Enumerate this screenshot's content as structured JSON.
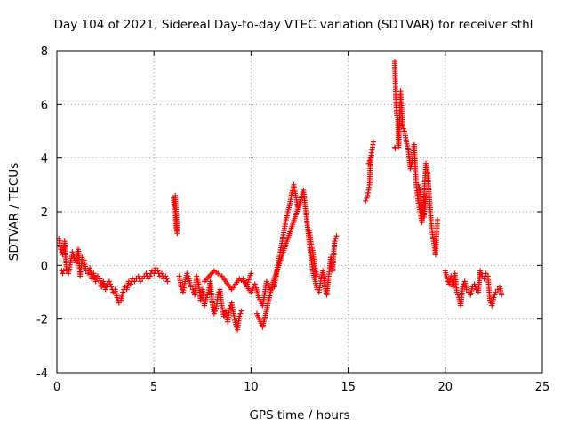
{
  "chart_data": {
    "type": "scatter",
    "title": "Day 104 of 2021, Sidereal Day-to-day VTEC variation (SDTVAR) for receiver sthl",
    "xlabel": "GPS time / hours",
    "ylabel": "SDTVAR / TECUs",
    "xlim": [
      0,
      25
    ],
    "ylim": [
      -4,
      8
    ],
    "xticks": [
      0,
      5,
      10,
      15,
      20,
      25
    ],
    "yticks": [
      -4,
      -2,
      0,
      2,
      4,
      6,
      8
    ],
    "grid": true,
    "marker": "plus",
    "series_color": "#ff0000",
    "series": [
      {
        "name": "sthl",
        "segments": [
          {
            "x": [
              0.1,
              0.2,
              0.3,
              0.4,
              0.5,
              0.6,
              0.7,
              0.8,
              0.9,
              1.0,
              1.1,
              1.2,
              1.3,
              1.4,
              1.5,
              1.6,
              1.7,
              1.8,
              1.9,
              2.0,
              2.1,
              2.2,
              2.3,
              2.4,
              2.5,
              2.6,
              2.7,
              2.8,
              2.9,
              3.0,
              3.1,
              3.2,
              3.3,
              3.4,
              3.5,
              3.6,
              3.7,
              3.8,
              3.9,
              4.0,
              4.1,
              4.2,
              4.3,
              4.4,
              4.5,
              4.6,
              4.7,
              4.8,
              4.9,
              5.0,
              5.1,
              5.2,
              5.3,
              5.4,
              5.5,
              5.6,
              5.7
            ],
            "y": [
              1.0,
              0.6,
              0.4,
              0.9,
              -0.2,
              -0.3,
              0.1,
              0.5,
              0.3,
              0.1,
              0.6,
              -0.4,
              0.3,
              0.2,
              -0.2,
              -0.3,
              -0.1,
              -0.5,
              -0.3,
              -0.6,
              -0.4,
              -0.5,
              -0.8,
              -0.6,
              -0.9,
              -0.7,
              -0.6,
              -0.8,
              -1.0,
              -0.9,
              -1.2,
              -1.4,
              -1.3,
              -1.0,
              -0.8,
              -0.9,
              -0.6,
              -0.7,
              -0.5,
              -0.6,
              -0.5,
              -0.4,
              -0.6,
              -0.5,
              -0.4,
              -0.3,
              -0.5,
              -0.4,
              -0.2,
              -0.3,
              -0.1,
              -0.2,
              -0.4,
              -0.3,
              -0.5,
              -0.4,
              -0.6
            ]
          },
          {
            "x": [
              0.25,
              0.3,
              0.35
            ],
            "y": [
              -0.2,
              -0.3,
              -0.2
            ]
          },
          {
            "x": [
              6.0,
              6.05,
              6.1,
              6.15,
              6.2,
              6.1
            ],
            "y": [
              2.5,
              2.2,
              2.0,
              1.4,
              1.2,
              2.6
            ]
          },
          {
            "x": [
              6.3,
              6.4,
              6.5,
              6.6,
              6.7,
              6.8,
              6.9,
              7.0,
              7.1,
              7.2,
              7.3,
              7.4,
              7.5,
              7.6,
              7.7,
              7.8,
              7.9,
              8.0,
              8.1,
              8.2,
              8.3,
              8.4,
              8.5,
              8.6,
              8.7,
              8.8,
              8.9,
              9.0,
              9.1,
              9.2,
              9.3,
              9.4,
              9.5
            ],
            "y": [
              -0.4,
              -0.8,
              -1.0,
              -0.6,
              -0.3,
              -0.5,
              -0.8,
              -0.9,
              -1.1,
              -0.4,
              -0.7,
              -1.3,
              -0.9,
              -1.5,
              -1.2,
              -1.0,
              -0.6,
              -1.4,
              -1.8,
              -1.6,
              -1.1,
              -0.9,
              -1.5,
              -1.9,
              -1.7,
              -2.1,
              -1.6,
              -1.4,
              -1.8,
              -2.2,
              -2.4,
              -1.9,
              -1.7
            ]
          },
          {
            "x": [
              7.6,
              8.1,
              8.5,
              9.0,
              9.4,
              9.8,
              10.0
            ],
            "y": [
              -0.6,
              -0.2,
              -0.4,
              -0.9,
              -0.5,
              -0.7,
              -0.3
            ]
          },
          {
            "x": [
              9.6,
              9.8,
              10.0,
              10.2,
              10.4,
              10.6,
              10.8,
              11.0,
              11.2,
              11.3,
              11.4,
              11.5,
              11.6,
              11.7,
              11.8,
              11.9,
              12.0,
              12.1,
              12.2,
              12.3,
              12.4
            ],
            "y": [
              -0.5,
              -0.8,
              -1.0,
              -0.7,
              -1.2,
              -1.5,
              -0.6,
              -0.9,
              -0.8,
              -0.4,
              0.1,
              0.5,
              0.9,
              1.3,
              1.7,
              2.0,
              2.3,
              2.7,
              3.0,
              2.6,
              2.2
            ]
          },
          {
            "x": [
              10.3,
              10.6,
              11.1,
              12.5,
              12.7,
              12.9,
              13.0,
              13.1,
              13.2,
              13.3,
              13.4,
              13.5,
              13.6,
              13.7,
              13.8,
              13.9,
              14.0,
              14.1,
              14.2,
              14.3,
              14.4
            ],
            "y": [
              -1.8,
              -2.3,
              -0.7,
              2.3,
              2.8,
              1.5,
              0.8,
              0.2,
              -0.3,
              -0.6,
              -0.9,
              -1.0,
              -0.5,
              -0.2,
              -0.8,
              -1.1,
              -0.4,
              0.3,
              -0.2,
              0.9,
              1.1
            ]
          },
          {
            "x": [
              13.0,
              13.1,
              13.2,
              13.3,
              13.4
            ],
            "y": [
              1.3,
              0.8,
              0.4,
              -0.1,
              -0.4
            ]
          },
          {
            "x": [
              15.9,
              16.0,
              16.05,
              16.1,
              16.15,
              16.2,
              16.25,
              16.3
            ],
            "y": [
              2.4,
              2.6,
              2.8,
              3.0,
              4.0,
              4.2,
              4.4,
              4.6
            ]
          },
          {
            "x": [
              16.05,
              16.1,
              16.2
            ],
            "y": [
              3.8,
              3.9,
              4.1
            ]
          },
          {
            "x": [
              17.4,
              17.45,
              17.5,
              17.55,
              17.6,
              17.7,
              17.8,
              17.9,
              18.0,
              18.1,
              18.2,
              18.3,
              18.4,
              18.5,
              18.6,
              18.7,
              18.8,
              18.9,
              19.0,
              19.1,
              19.2,
              19.3,
              19.4,
              19.5,
              19.6
            ],
            "y": [
              7.6,
              6.2,
              5.6,
              5.5,
              4.4,
              6.5,
              5.2,
              5.0,
              4.6,
              4.3,
              3.6,
              3.9,
              4.5,
              3.0,
              2.4,
              2.0,
              1.6,
              2.5,
              3.8,
              3.4,
              2.3,
              1.4,
              0.9,
              0.4,
              1.7
            ]
          },
          {
            "x": [
              17.4,
              17.42
            ],
            "y": [
              4.4,
              4.35
            ]
          },
          {
            "x": [
              18.6,
              18.7,
              18.8,
              18.9,
              19.0
            ],
            "y": [
              3.0,
              2.8,
              2.2,
              1.8,
              2.6
            ]
          },
          {
            "x": [
              20.0,
              20.1,
              20.2,
              20.3,
              20.4,
              20.5,
              20.6,
              20.7,
              20.8,
              20.9,
              21.0,
              21.1,
              21.2,
              21.3,
              21.4,
              21.5,
              21.6,
              21.7,
              21.8,
              21.9,
              22.0,
              22.1,
              22.2,
              22.3,
              22.4,
              22.5,
              22.6,
              22.7,
              22.8,
              22.9
            ],
            "y": [
              -0.2,
              -0.5,
              -0.7,
              -0.4,
              -0.8,
              -0.3,
              -1.0,
              -1.2,
              -1.5,
              -0.8,
              -0.6,
              -0.9,
              -1.0,
              -1.1,
              -0.8,
              -0.7,
              -0.9,
              -1.0,
              -0.2,
              -0.4,
              -0.5,
              -0.3,
              -0.4,
              -1.3,
              -1.5,
              -1.2,
              -1.0,
              -0.9,
              -0.8,
              -1.1
            ]
          }
        ]
      }
    ]
  }
}
